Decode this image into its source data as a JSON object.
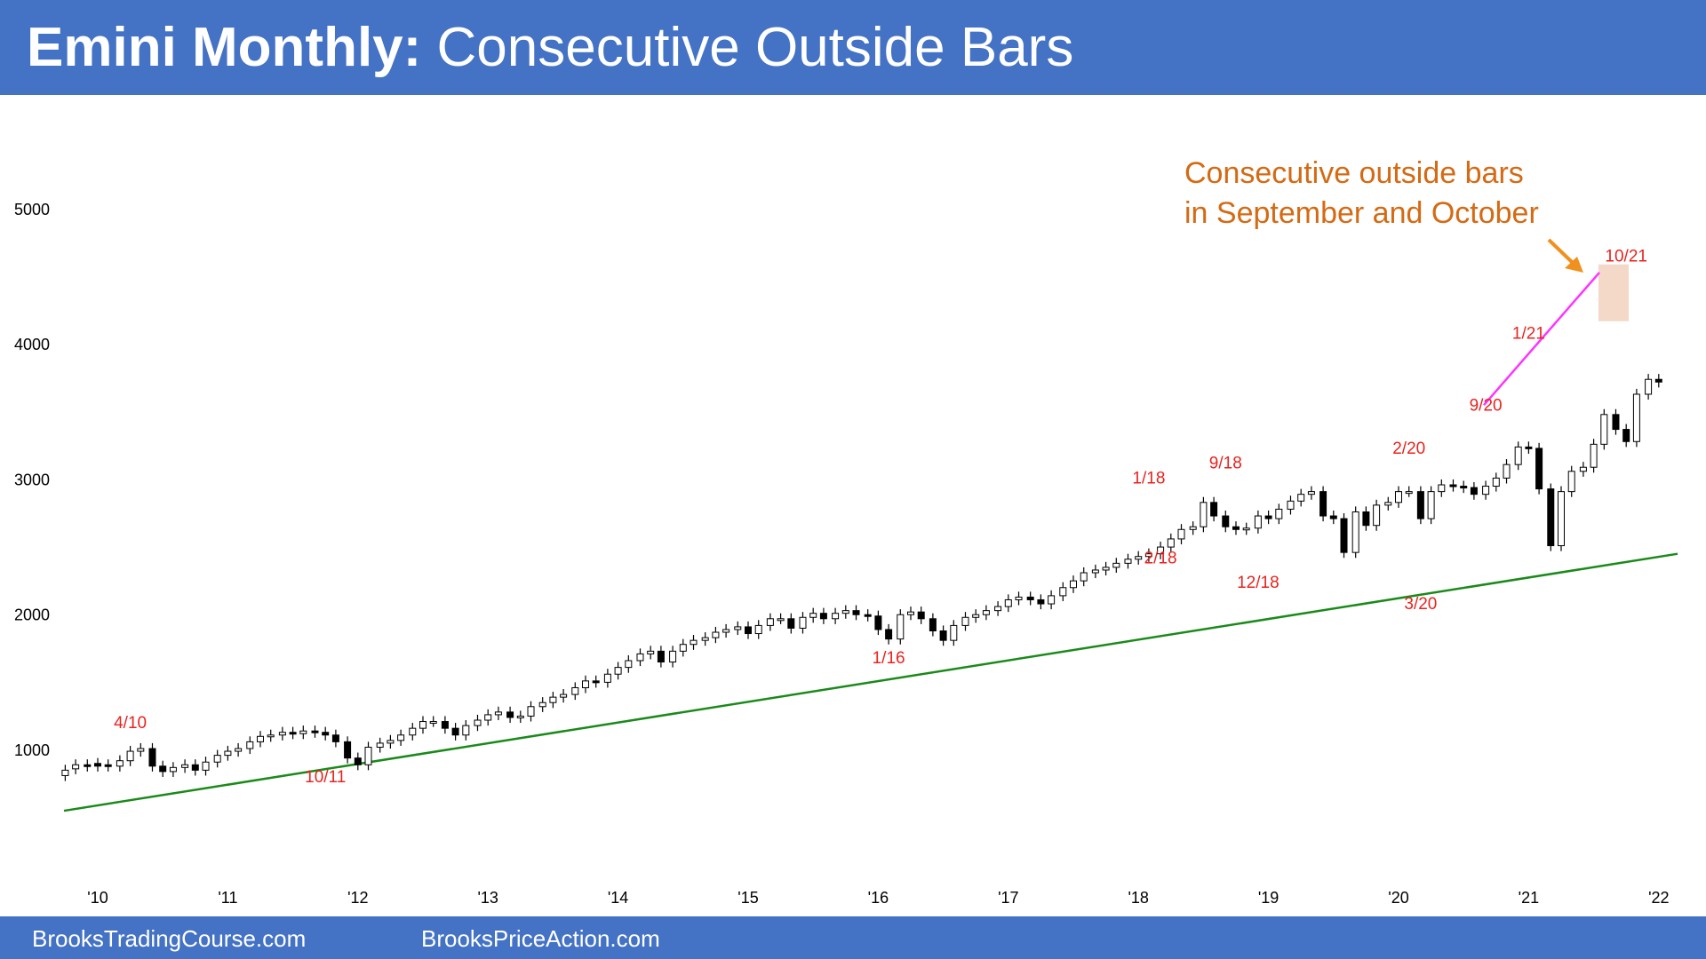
{
  "header": {
    "title_bold": "Emini Monthly:",
    "title_rest": "Consecutive Outside Bars"
  },
  "footer": {
    "site1": "BrooksTradingCourse.com",
    "site2": "BrooksPriceAction.com"
  },
  "callout": {
    "line1": "Consecutive outside bars",
    "line2": "in September and October"
  },
  "colors": {
    "header_bg": "#4472c4",
    "label_red": "#e8231f",
    "trend_green": "#1a8a1a",
    "channel_magenta": "#ff33ff",
    "callout_orange": "#d46a14",
    "highlight": "#f4d9c8",
    "bar": "#000000"
  },
  "chart_data": {
    "type": "candlestick",
    "title": "Emini Monthly: Consecutive Outside Bars",
    "x_ticks": [
      "'10",
      "'11",
      "'12",
      "'13",
      "'14",
      "'15",
      "'16",
      "'17",
      "'18",
      "'19",
      "'20",
      "'21",
      "'22"
    ],
    "y_ticks": [
      1000,
      2000,
      3000,
      4000,
      5000
    ],
    "ylim": [
      300,
      5600
    ],
    "x_range": [
      2009.7,
      2022.2
    ],
    "grid": false,
    "series": [
      {
        "values": [
          [
            2009.75,
            800,
            840
          ],
          [
            2009.83,
            850,
            880
          ],
          [
            2009.92,
            880,
            870
          ],
          [
            2010.0,
            890,
            870
          ],
          [
            2010.08,
            880,
            870
          ],
          [
            2010.17,
            870,
            910
          ],
          [
            2010.25,
            910,
            980
          ],
          [
            2010.33,
            980,
            1000
          ],
          [
            2010.42,
            1000,
            870
          ],
          [
            2010.5,
            870,
            830
          ],
          [
            2010.58,
            830,
            860
          ],
          [
            2010.67,
            860,
            880
          ],
          [
            2010.75,
            880,
            840
          ],
          [
            2010.83,
            840,
            900
          ],
          [
            2010.92,
            900,
            950
          ],
          [
            2011.0,
            950,
            980
          ],
          [
            2011.08,
            980,
            1000
          ],
          [
            2011.17,
            1000,
            1050
          ],
          [
            2011.25,
            1050,
            1090
          ],
          [
            2011.33,
            1090,
            1100
          ],
          [
            2011.42,
            1100,
            1120
          ],
          [
            2011.5,
            1120,
            1110
          ],
          [
            2011.58,
            1110,
            1130
          ],
          [
            2011.67,
            1130,
            1120
          ],
          [
            2011.75,
            1120,
            1100
          ],
          [
            2011.83,
            1100,
            1050
          ],
          [
            2011.92,
            1050,
            930
          ],
          [
            2012.0,
            930,
            880
          ],
          [
            2012.08,
            880,
            1010
          ],
          [
            2012.17,
            1010,
            1040
          ],
          [
            2012.25,
            1040,
            1060
          ],
          [
            2012.33,
            1060,
            1100
          ],
          [
            2012.42,
            1100,
            1150
          ],
          [
            2012.5,
            1150,
            1200
          ],
          [
            2012.58,
            1200,
            1200
          ],
          [
            2012.67,
            1200,
            1150
          ],
          [
            2012.75,
            1150,
            1100
          ],
          [
            2012.83,
            1100,
            1170
          ],
          [
            2012.92,
            1170,
            1210
          ],
          [
            2013.0,
            1210,
            1250
          ],
          [
            2013.08,
            1250,
            1270
          ],
          [
            2013.17,
            1270,
            1230
          ],
          [
            2013.25,
            1230,
            1240
          ],
          [
            2013.33,
            1240,
            1310
          ],
          [
            2013.42,
            1310,
            1340
          ],
          [
            2013.5,
            1340,
            1380
          ],
          [
            2013.58,
            1380,
            1400
          ],
          [
            2013.67,
            1400,
            1450
          ],
          [
            2013.75,
            1450,
            1500
          ],
          [
            2013.83,
            1500,
            1490
          ],
          [
            2013.92,
            1490,
            1550
          ],
          [
            2014.0,
            1550,
            1600
          ],
          [
            2014.08,
            1600,
            1650
          ],
          [
            2014.17,
            1650,
            1700
          ],
          [
            2014.25,
            1700,
            1720
          ],
          [
            2014.33,
            1720,
            1640
          ],
          [
            2014.42,
            1640,
            1720
          ],
          [
            2014.5,
            1720,
            1770
          ],
          [
            2014.58,
            1770,
            1800
          ],
          [
            2014.67,
            1800,
            1820
          ],
          [
            2014.75,
            1820,
            1860
          ],
          [
            2014.83,
            1860,
            1880
          ],
          [
            2014.92,
            1880,
            1900
          ],
          [
            2015.0,
            1900,
            1850
          ],
          [
            2015.08,
            1850,
            1910
          ],
          [
            2015.17,
            1910,
            1960
          ],
          [
            2015.25,
            1960,
            1960
          ],
          [
            2015.33,
            1960,
            1890
          ],
          [
            2015.42,
            1890,
            1970
          ],
          [
            2015.5,
            1970,
            2000
          ],
          [
            2015.58,
            2000,
            1960
          ],
          [
            2015.67,
            1960,
            2000
          ],
          [
            2015.75,
            2000,
            2020
          ],
          [
            2015.83,
            2020,
            1990
          ],
          [
            2015.92,
            1990,
            1980
          ],
          [
            2016.0,
            1980,
            1880
          ],
          [
            2016.08,
            1880,
            1810
          ],
          [
            2016.17,
            1810,
            1990
          ],
          [
            2016.25,
            1990,
            2010
          ],
          [
            2016.33,
            2010,
            1960
          ],
          [
            2016.42,
            1960,
            1870
          ],
          [
            2016.5,
            1870,
            1800
          ],
          [
            2016.58,
            1800,
            1910
          ],
          [
            2016.67,
            1910,
            1970
          ],
          [
            2016.75,
            1970,
            1990
          ],
          [
            2016.83,
            1990,
            2020
          ],
          [
            2016.92,
            2020,
            2050
          ],
          [
            2017.0,
            2050,
            2100
          ],
          [
            2017.08,
            2100,
            2120
          ],
          [
            2017.17,
            2120,
            2100
          ],
          [
            2017.25,
            2100,
            2070
          ],
          [
            2017.33,
            2070,
            2130
          ],
          [
            2017.42,
            2130,
            2190
          ],
          [
            2017.5,
            2190,
            2240
          ],
          [
            2017.58,
            2240,
            2300
          ],
          [
            2017.67,
            2300,
            2320
          ],
          [
            2017.75,
            2320,
            2340
          ],
          [
            2017.83,
            2340,
            2370
          ],
          [
            2017.92,
            2370,
            2400
          ],
          [
            2018.0,
            2400,
            2420
          ],
          [
            2018.08,
            2420,
            2440
          ],
          [
            2018.17,
            2440,
            2490
          ],
          [
            2018.25,
            2490,
            2550
          ],
          [
            2018.33,
            2550,
            2620
          ],
          [
            2018.42,
            2620,
            2640
          ],
          [
            2018.5,
            2640,
            2820
          ],
          [
            2018.58,
            2820,
            2720
          ],
          [
            2018.67,
            2720,
            2640
          ],
          [
            2018.75,
            2640,
            2620
          ],
          [
            2018.83,
            2620,
            2630
          ],
          [
            2018.92,
            2630,
            2720
          ],
          [
            2019.0,
            2720,
            2700
          ],
          [
            2019.08,
            2700,
            2770
          ],
          [
            2019.17,
            2770,
            2830
          ],
          [
            2019.25,
            2830,
            2880
          ],
          [
            2019.33,
            2880,
            2900
          ],
          [
            2019.42,
            2900,
            2720
          ],
          [
            2019.5,
            2720,
            2700
          ],
          [
            2019.58,
            2700,
            2450
          ],
          [
            2019.67,
            2450,
            2750
          ],
          [
            2019.75,
            2750,
            2650
          ],
          [
            2019.83,
            2650,
            2800
          ],
          [
            2019.92,
            2800,
            2820
          ],
          [
            2020.0,
            2820,
            2900
          ],
          [
            2020.08,
            2900,
            2900
          ],
          [
            2020.17,
            2900,
            2700
          ],
          [
            2020.25,
            2700,
            2900
          ],
          [
            2020.33,
            2900,
            2950
          ],
          [
            2020.42,
            2950,
            2940
          ],
          [
            2020.5,
            2940,
            2930
          ],
          [
            2020.58,
            2930,
            2880
          ],
          [
            2020.67,
            2880,
            2940
          ],
          [
            2020.75,
            2940,
            3000
          ],
          [
            2020.83,
            3000,
            3100
          ],
          [
            2020.92,
            3100,
            3230
          ],
          [
            2021.0,
            3230,
            3220
          ],
          [
            2021.08,
            3220,
            2920
          ],
          [
            2021.17,
            2920,
            2500
          ],
          [
            2021.25,
            2500,
            2900
          ],
          [
            2021.33,
            2900,
            3050
          ],
          [
            2021.42,
            3050,
            3080
          ],
          [
            2021.5,
            3080,
            3250
          ],
          [
            2021.58,
            3250,
            3470
          ],
          [
            2021.67,
            3470,
            3360
          ],
          [
            2021.75,
            3360,
            3270
          ],
          [
            2021.83,
            3270,
            3620
          ],
          [
            2021.92,
            3620,
            3730
          ],
          [
            2022.0,
            3730,
            3710
          ]
        ]
      }
    ],
    "labels_red": [
      "4/10",
      "10/11",
      "1/16",
      "1/18",
      "2/18",
      "9/18",
      "12/18",
      "2/20",
      "3/20",
      "9/20",
      "1/21",
      "10/21"
    ]
  }
}
